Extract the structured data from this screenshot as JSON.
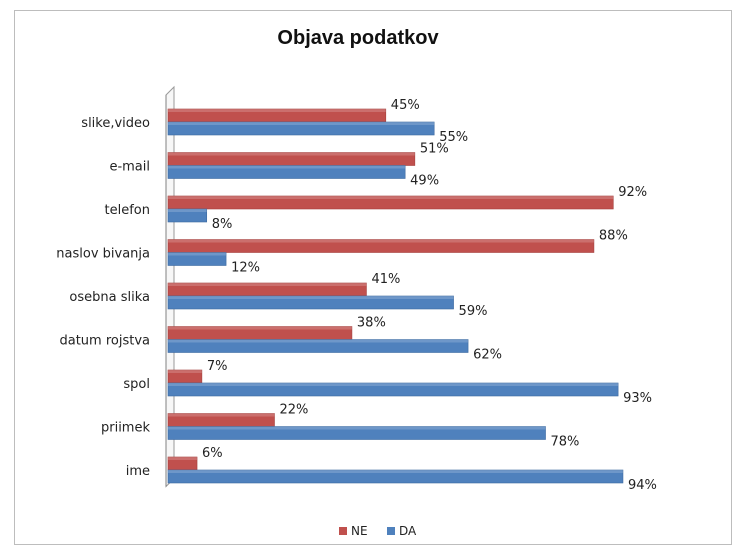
{
  "chart_data": {
    "type": "bar",
    "orientation": "horizontal",
    "title": "Objava podatkov",
    "categories": [
      "slike,video",
      "e-mail",
      "telefon",
      "naslov bivanja",
      "osebna slika",
      "datum rojstva",
      "spol",
      "priimek",
      "ime"
    ],
    "series": [
      {
        "name": "NE",
        "color": "#c0504d",
        "values": [
          45,
          51,
          92,
          88,
          41,
          38,
          7,
          22,
          6
        ],
        "labels": [
          "45%",
          "51%",
          "92%",
          "88%",
          "41%",
          "38%",
          "7%",
          "22%",
          "6%"
        ]
      },
      {
        "name": "DA",
        "color": "#4f81bd",
        "values": [
          55,
          49,
          8,
          12,
          59,
          62,
          93,
          78,
          94
        ],
        "labels": [
          "55%",
          "49%",
          "8%",
          "12%",
          "59%",
          "62%",
          "93%",
          "78%",
          "94%"
        ]
      }
    ],
    "xlim": [
      0,
      100
    ],
    "grid": false,
    "legend": "bottom"
  }
}
